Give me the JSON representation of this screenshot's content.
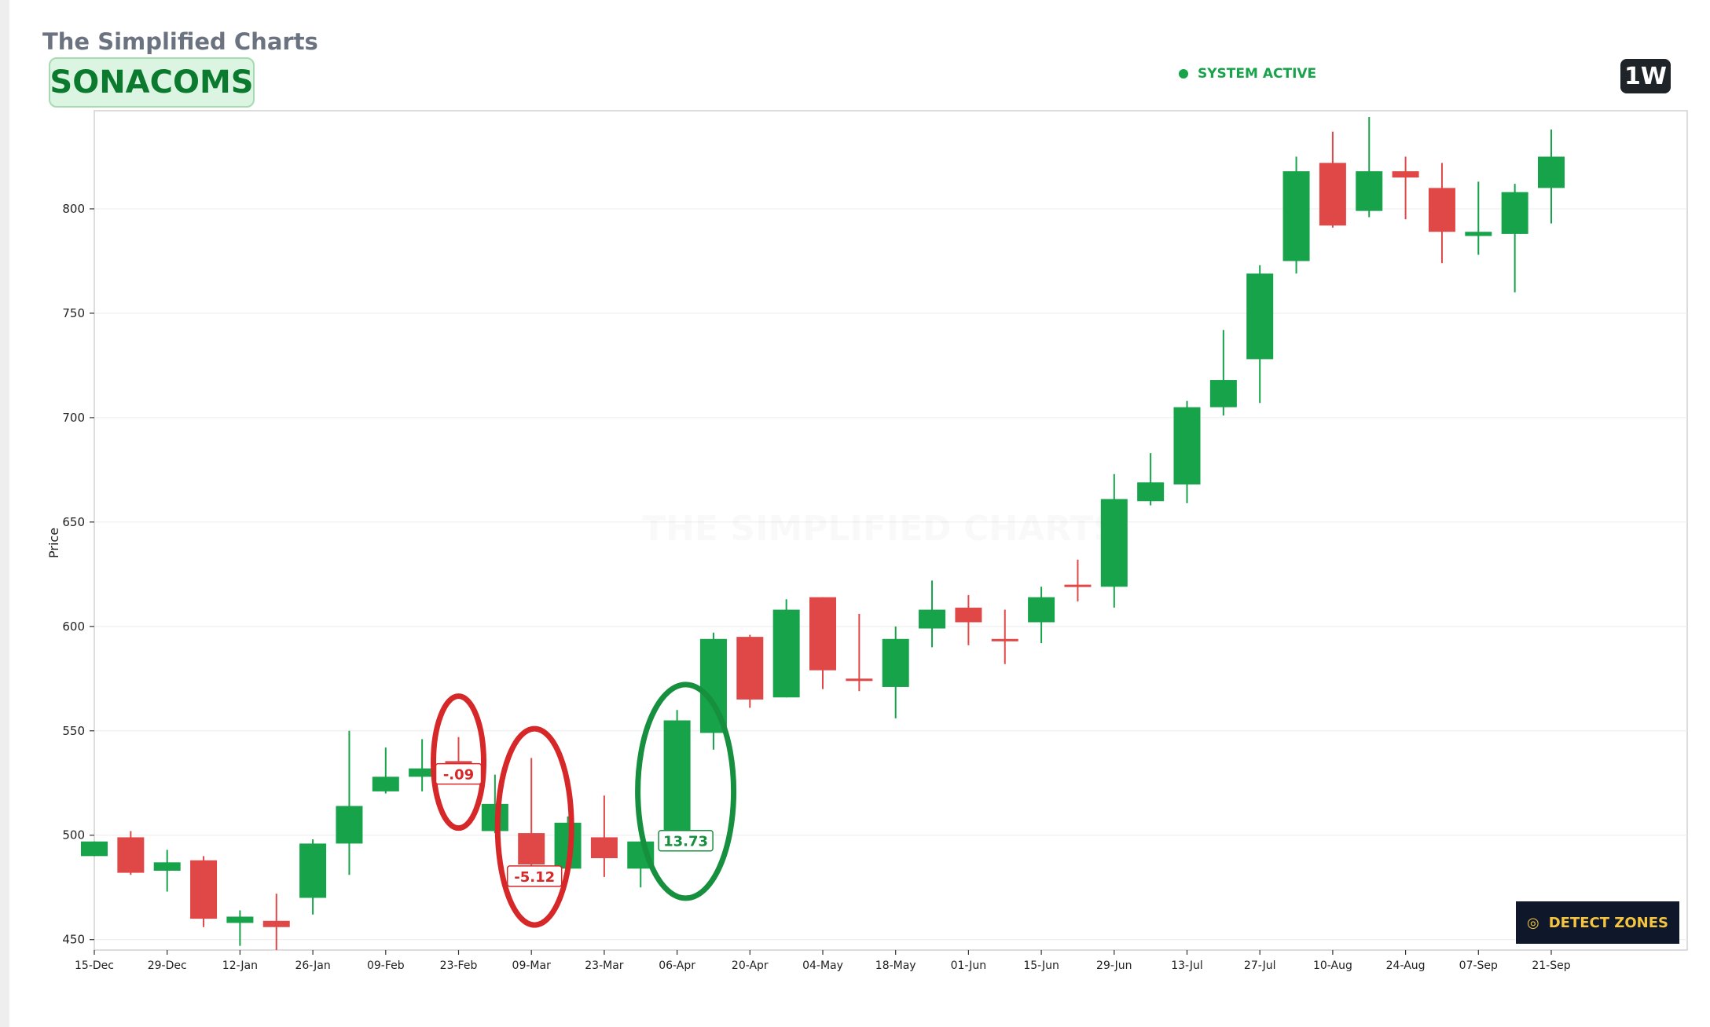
{
  "header": {
    "brand": "The Simplified Charts",
    "ticker": "SONACOMS",
    "status": "SYSTEM ACTIVE",
    "timeframe": "1W"
  },
  "watermark": "THE SIMPLIFIED CHARTS",
  "button": {
    "label": "DETECT ZONES",
    "icon": "target-icon"
  },
  "colors": {
    "up": "#16a34a",
    "down": "#e04848",
    "accent": "#0b7a2e"
  },
  "chart_data": {
    "type": "candlestick",
    "xlabel": "",
    "ylabel": "Price",
    "ylim": [
      445,
      847
    ],
    "yticks": [
      450,
      500,
      550,
      600,
      650,
      700,
      750,
      800
    ],
    "grid": true,
    "xtick_labels": [
      "15-Dec",
      "29-Dec",
      "12-Jan",
      "26-Jan",
      "09-Feb",
      "23-Feb",
      "09-Mar",
      "23-Mar",
      "06-Apr",
      "20-Apr",
      "04-May",
      "18-May",
      "01-Jun",
      "15-Jun",
      "29-Jun",
      "13-Jul",
      "27-Jul",
      "10-Aug",
      "24-Aug",
      "07-Sep",
      "21-Sep"
    ],
    "candles": [
      {
        "date": "15-Dec",
        "open": 490,
        "high": 497,
        "low": 490,
        "close": 497
      },
      {
        "date": "22-Dec",
        "open": 499,
        "high": 502,
        "low": 481,
        "close": 482
      },
      {
        "date": "29-Dec",
        "open": 483,
        "high": 493,
        "low": 473,
        "close": 487
      },
      {
        "date": "05-Jan",
        "open": 488,
        "high": 490,
        "low": 456,
        "close": 460
      },
      {
        "date": "12-Jan",
        "open": 458,
        "high": 464,
        "low": 447,
        "close": 461
      },
      {
        "date": "19-Jan",
        "open": 459,
        "high": 472,
        "low": 445,
        "close": 456
      },
      {
        "date": "26-Jan",
        "open": 470,
        "high": 498,
        "low": 462,
        "close": 496
      },
      {
        "date": "02-Feb",
        "open": 496,
        "high": 550,
        "low": 481,
        "close": 514
      },
      {
        "date": "09-Feb",
        "open": 521,
        "high": 542,
        "low": 520,
        "close": 528
      },
      {
        "date": "16-Feb",
        "open": 528,
        "high": 546,
        "low": 521,
        "close": 532
      },
      {
        "date": "23-Feb",
        "open": 535.5,
        "high": 547,
        "low": 528,
        "close": 534.5
      },
      {
        "date": "02-Mar",
        "open": 502,
        "high": 529,
        "low": 501,
        "close": 515
      },
      {
        "date": "09-Mar",
        "open": 501,
        "high": 537,
        "low": 484,
        "close": 486
      },
      {
        "date": "16-Mar",
        "open": 484,
        "high": 509,
        "low": 484,
        "close": 506
      },
      {
        "date": "23-Mar",
        "open": 499,
        "high": 519,
        "low": 480,
        "close": 489
      },
      {
        "date": "30-Mar",
        "open": 484,
        "high": 497,
        "low": 475,
        "close": 497
      },
      {
        "date": "06-Apr",
        "open": 499,
        "high": 560,
        "low": 499,
        "close": 555
      },
      {
        "date": "13-Apr",
        "open": 549,
        "high": 597,
        "low": 541,
        "close": 594
      },
      {
        "date": "20-Apr",
        "open": 595,
        "high": 596,
        "low": 561,
        "close": 565
      },
      {
        "date": "27-Apr",
        "open": 566,
        "high": 613,
        "low": 566,
        "close": 608
      },
      {
        "date": "04-May",
        "open": 614,
        "high": 614,
        "low": 570,
        "close": 579
      },
      {
        "date": "11-May",
        "open": 575,
        "high": 606,
        "low": 569,
        "close": 574
      },
      {
        "date": "18-May",
        "open": 571,
        "high": 600,
        "low": 556,
        "close": 594
      },
      {
        "date": "25-May",
        "open": 599,
        "high": 622,
        "low": 590,
        "close": 608
      },
      {
        "date": "01-Jun",
        "open": 609,
        "high": 615,
        "low": 591,
        "close": 602
      },
      {
        "date": "08-Jun",
        "open": 594,
        "high": 608,
        "low": 582,
        "close": 593
      },
      {
        "date": "15-Jun",
        "open": 602,
        "high": 619,
        "low": 592,
        "close": 614
      },
      {
        "date": "22-Jun",
        "open": 620,
        "high": 632,
        "low": 612,
        "close": 619
      },
      {
        "date": "29-Jun",
        "open": 619,
        "high": 673,
        "low": 609,
        "close": 661
      },
      {
        "date": "06-Jul",
        "open": 660,
        "high": 683,
        "low": 658,
        "close": 669
      },
      {
        "date": "13-Jul",
        "open": 668,
        "high": 708,
        "low": 659,
        "close": 705
      },
      {
        "date": "20-Jul",
        "open": 705,
        "high": 742,
        "low": 701,
        "close": 718
      },
      {
        "date": "27-Jul",
        "open": 728,
        "high": 773,
        "low": 707,
        "close": 769
      },
      {
        "date": "03-Aug",
        "open": 775,
        "high": 825,
        "low": 769,
        "close": 818
      },
      {
        "date": "10-Aug",
        "open": 822,
        "high": 837,
        "low": 791,
        "close": 792
      },
      {
        "date": "17-Aug",
        "open": 799,
        "high": 844,
        "low": 796,
        "close": 818
      },
      {
        "date": "24-Aug",
        "open": 818,
        "high": 825,
        "low": 795,
        "close": 815
      },
      {
        "date": "31-Aug",
        "open": 810,
        "high": 822,
        "low": 774,
        "close": 789
      },
      {
        "date": "07-Sep",
        "open": 787,
        "high": 813,
        "low": 778,
        "close": 789
      },
      {
        "date": "14-Sep",
        "open": 788,
        "high": 812,
        "low": 760,
        "close": 808
      },
      {
        "date": "21-Sep",
        "open": 810,
        "high": 838,
        "low": 793,
        "close": 825
      }
    ],
    "annotations": [
      {
        "candle_index": 10,
        "label": "-.09",
        "color": "red"
      },
      {
        "candle_index": 12,
        "label": "-5.12",
        "color": "red"
      },
      {
        "candle_index": 16,
        "label": "13.73",
        "color": "green"
      }
    ]
  }
}
